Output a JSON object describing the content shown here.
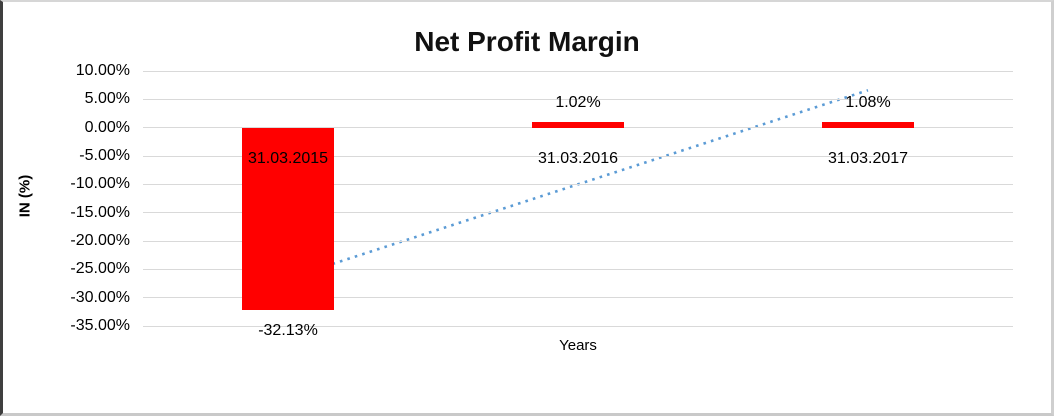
{
  "chart_data": {
    "type": "bar",
    "title": "Net Profit Margin",
    "xlabel": "Years",
    "ylabel": "IN (%)",
    "categories": [
      "31.03.2015",
      "31.03.2016",
      "31.03.2017"
    ],
    "series": [
      {
        "name": "Net Profit Margin",
        "values": [
          -32.13,
          1.02,
          1.08
        ]
      }
    ],
    "data_labels": [
      "-32.13%",
      "1.02%",
      "1.08%"
    ],
    "ylim": [
      -35,
      10
    ],
    "yticks": [
      10,
      5,
      0,
      -5,
      -10,
      -15,
      -20,
      -25,
      -30,
      -35
    ],
    "ytick_labels": [
      "10.00%",
      "5.00%",
      "0.00%",
      "-5.00%",
      "-10.00%",
      "-15.00%",
      "-20.00%",
      "-25.00%",
      "-30.00%",
      "-35.00%"
    ],
    "grid": true,
    "legend_position": "none",
    "colors": {
      "bar": "#FF0000",
      "gridline": "#D9D9D9",
      "trendline": "#5B9BD5",
      "text": "#000000"
    },
    "trendline": {
      "style": "dotted",
      "start_value": -26.6,
      "end_value": 6.6
    }
  }
}
